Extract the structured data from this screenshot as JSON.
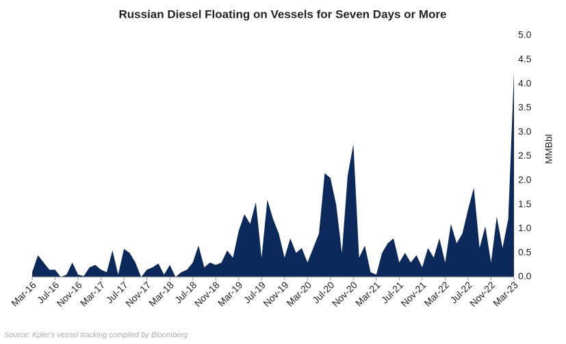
{
  "chart_data": {
    "type": "area",
    "title": "Russian Diesel Floating on Vessels for Seven Days or More",
    "y_label": "MMBbl",
    "source": "Source: Kpler's vessel tracking compiled by Bloomberg",
    "color": "#0b2a5b",
    "categories": [
      "Mar-16",
      null,
      null,
      null,
      "Jul-16",
      null,
      null,
      null,
      "Nov-16",
      null,
      null,
      null,
      "Mar-17",
      null,
      null,
      null,
      "Jul-17",
      null,
      null,
      null,
      "Nov-17",
      null,
      null,
      null,
      "Mar-18",
      null,
      null,
      null,
      "Jul-18",
      null,
      null,
      null,
      "Nov-18",
      null,
      null,
      null,
      "Mar-19",
      null,
      null,
      null,
      "Jul-19",
      null,
      null,
      null,
      "Nov-19",
      null,
      null,
      null,
      "Mar-20",
      null,
      null,
      null,
      "Jul-20",
      null,
      null,
      null,
      "Nov-20",
      null,
      null,
      null,
      "Mar-21",
      null,
      null,
      null,
      "Jul-21",
      null,
      null,
      null,
      "Nov-21",
      null,
      null,
      null,
      "Mar-22",
      null,
      null,
      null,
      "Jul-22",
      null,
      null,
      null,
      "Nov-22",
      null,
      null,
      null,
      "Mar-23"
    ],
    "values": [
      0.1,
      0.45,
      0.3,
      0.15,
      0.15,
      0,
      0.05,
      0.3,
      0.05,
      0.02,
      0.2,
      0.25,
      0.15,
      0.1,
      0.55,
      0.05,
      0.58,
      0.5,
      0.3,
      0,
      0.15,
      0.2,
      0.28,
      0.05,
      0.25,
      0,
      0.1,
      0.15,
      0.3,
      0.65,
      0.2,
      0.3,
      0.25,
      0.3,
      0.55,
      0.4,
      0.95,
      1.3,
      1.1,
      1.55,
      0.4,
      1.6,
      1.2,
      0.9,
      0.4,
      0.8,
      0.5,
      0.6,
      0.3,
      0.6,
      0.9,
      2.15,
      2.05,
      1.5,
      0.5,
      2.1,
      2.75,
      0.4,
      0.65,
      0.1,
      0.05,
      0.5,
      0.7,
      0.8,
      0.3,
      0.5,
      0.3,
      0.45,
      0.2,
      0.6,
      0.4,
      0.8,
      0.3,
      1.1,
      0.7,
      0.9,
      1.4,
      1.85,
      0.6,
      1.05,
      0.3,
      1.25,
      0.6,
      1.2,
      4.25
    ],
    "ylim": [
      0,
      5
    ],
    "yticks": [
      {
        "value": 0,
        "label": "0.0"
      },
      {
        "value": 0.5,
        "label": "0.5"
      },
      {
        "value": 1,
        "label": "1.0"
      },
      {
        "value": 1.5,
        "label": "1.5"
      },
      {
        "value": 2,
        "label": "2.0"
      },
      {
        "value": 2.5,
        "label": "2.5"
      },
      {
        "value": 3,
        "label": "3.0"
      },
      {
        "value": 3.5,
        "label": "3.5"
      },
      {
        "value": 4,
        "label": "4.0"
      },
      {
        "value": 4.5,
        "label": "4.5"
      },
      {
        "value": 5,
        "label": "5.0"
      }
    ]
  }
}
